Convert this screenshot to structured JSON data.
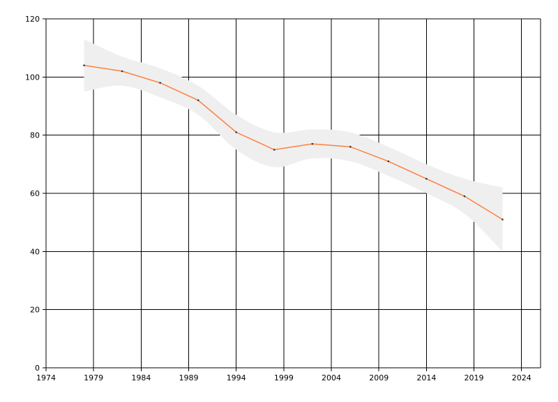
{
  "chart_data": {
    "type": "line",
    "title": "",
    "xlabel": "",
    "ylabel": "",
    "xlim": [
      1974,
      2026
    ],
    "ylim": [
      0,
      120
    ],
    "x_ticks": [
      1974,
      1979,
      1984,
      1989,
      1994,
      1999,
      2004,
      2009,
      2014,
      2019,
      2024
    ],
    "y_ticks": [
      0,
      20,
      40,
      60,
      80,
      100,
      120
    ],
    "grid": true,
    "legend": "none",
    "series": [
      {
        "x": [
          1978,
          1982,
          1986,
          1990,
          1994,
          1998,
          2002,
          2006,
          2010,
          2014,
          2018,
          2022
        ],
        "values": [
          104,
          102,
          98,
          92,
          81,
          75,
          77,
          76,
          71,
          65,
          59,
          51
        ],
        "color": "#ff7f3f"
      }
    ],
    "confidence_band": {
      "x": [
        1978,
        1982,
        1986,
        1990,
        1994,
        1998,
        2002,
        2006,
        2010,
        2014,
        2018,
        2022
      ],
      "upper": [
        113,
        107,
        103,
        97,
        87,
        81,
        82,
        81,
        76,
        70,
        65,
        62
      ],
      "lower": [
        95,
        97,
        93,
        87,
        75,
        69,
        72,
        71,
        66,
        60,
        53,
        40
      ],
      "color": "#efefef"
    }
  }
}
